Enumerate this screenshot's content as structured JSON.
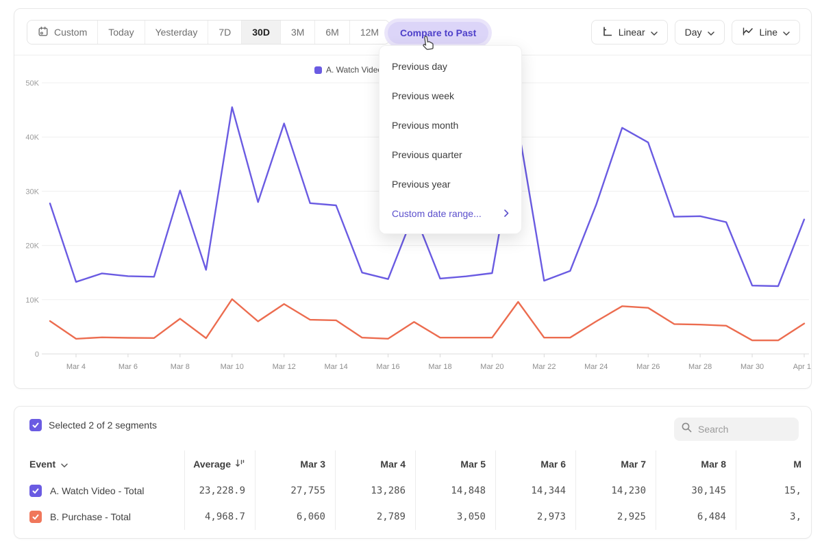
{
  "toolbar": {
    "ranges": [
      "Custom",
      "Today",
      "Yesterday",
      "7D",
      "30D",
      "3M",
      "6M",
      "12M"
    ],
    "selected_range": "30D",
    "compare_button": "Compare to Past",
    "scale_label": "Linear",
    "interval_label": "Day",
    "chart_type_label": "Line"
  },
  "compare_menu": {
    "items": [
      "Previous day",
      "Previous week",
      "Previous month",
      "Previous quarter",
      "Previous year"
    ],
    "custom_item": "Custom date range..."
  },
  "legend": [
    {
      "label": "A. Watch Video - Total",
      "color": "#6A5BE2"
    },
    {
      "label": "B. Purchase - Total",
      "color": "#EC6C4F"
    }
  ],
  "chart_data": {
    "type": "line",
    "x": [
      "Mar 3",
      "Mar 4",
      "Mar 5",
      "Mar 6",
      "Mar 7",
      "Mar 8",
      "Mar 9",
      "Mar 10",
      "Mar 11",
      "Mar 12",
      "Mar 13",
      "Mar 14",
      "Mar 15",
      "Mar 16",
      "Mar 17",
      "Mar 18",
      "Mar 19",
      "Mar 20",
      "Mar 21",
      "Mar 22",
      "Mar 23",
      "Mar 24",
      "Mar 25",
      "Mar 26",
      "Mar 27",
      "Mar 28",
      "Mar 29",
      "Mar 30",
      "Mar 31",
      "Apr 1"
    ],
    "series": [
      {
        "name": "A. Watch Video - Total",
        "color": "#6A5BE2",
        "values": [
          27755,
          13286,
          14848,
          14344,
          14230,
          30145,
          15500,
          45500,
          28000,
          42500,
          27800,
          27400,
          15000,
          13800,
          26000,
          13900,
          14300,
          14900,
          42000,
          13500,
          15300,
          27500,
          41700,
          39000,
          25300,
          25400,
          24300,
          12600,
          12500,
          24800
        ]
      },
      {
        "name": "B. Purchase - Total",
        "color": "#EC6C4F",
        "values": [
          6060,
          2789,
          3050,
          2973,
          2925,
          6484,
          2900,
          10100,
          6000,
          9200,
          6300,
          6200,
          3000,
          2800,
          5900,
          3000,
          3000,
          3000,
          9600,
          3000,
          3000,
          6000,
          8800,
          8500,
          5500,
          5400,
          5200,
          2500,
          2500,
          5600
        ]
      }
    ],
    "ylim": [
      0,
      50000
    ],
    "yticks": [
      {
        "v": 0,
        "label": "0"
      },
      {
        "v": 10000,
        "label": "10K"
      },
      {
        "v": 20000,
        "label": "20K"
      },
      {
        "v": 30000,
        "label": "30K"
      },
      {
        "v": 40000,
        "label": "40K"
      },
      {
        "v": 50000,
        "label": "50K"
      }
    ],
    "xtick_labels": [
      "Mar 4",
      "Mar 6",
      "Mar 8",
      "Mar 10",
      "Mar 12",
      "Mar 14",
      "Mar 16",
      "Mar 18",
      "Mar 20",
      "Mar 22",
      "Mar 24",
      "Mar 26",
      "Mar 28",
      "Mar 30",
      "Apr 1"
    ],
    "xtick_indices": [
      1,
      3,
      5,
      7,
      9,
      11,
      13,
      15,
      17,
      19,
      21,
      23,
      25,
      27,
      29
    ],
    "grid": true,
    "legend_position": "top-center"
  },
  "segments_bar": {
    "selected_label": "Selected 2 of 2 segments",
    "search_placeholder": "Search"
  },
  "table": {
    "columns": [
      "Event",
      "Average",
      "Mar 3",
      "Mar 4",
      "Mar 5",
      "Mar 6",
      "Mar 7",
      "Mar 8",
      "M"
    ],
    "rows": [
      {
        "label": "A. Watch Video - Total",
        "color": "#6A5BE2",
        "values": [
          "23,228.9",
          "27,755",
          "13,286",
          "14,848",
          "14,344",
          "14,230",
          "30,145",
          "15,"
        ]
      },
      {
        "label": "B. Purchase - Total",
        "color": "#F0775B",
        "values": [
          "4,968.7",
          "6,060",
          "2,789",
          "3,050",
          "2,973",
          "2,925",
          "6,484",
          "3,"
        ]
      }
    ]
  },
  "colors": {
    "accent_purple": "#6A5BE2",
    "accent_orange": "#EC6C4F",
    "compare_bg": "#DCD5F8",
    "compare_text": "#4E40C9",
    "grid_line": "#EFEFEF",
    "axis_label": "#9B9B9B"
  }
}
